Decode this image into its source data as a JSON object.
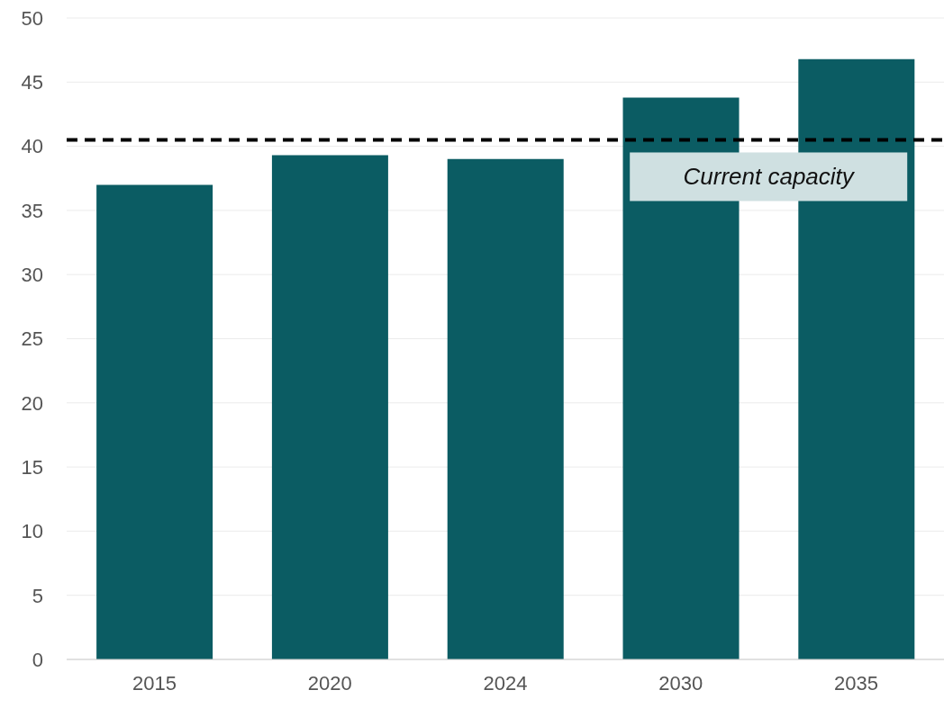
{
  "chart_data": {
    "type": "bar",
    "categories": [
      "2015",
      "2020",
      "2024",
      "2030",
      "2035"
    ],
    "values": [
      37.0,
      39.3,
      39.0,
      43.8,
      46.8
    ],
    "color": "#0b5c63",
    "ylim": [
      0,
      50
    ],
    "yticks": [
      0,
      5,
      10,
      15,
      20,
      25,
      30,
      35,
      40,
      45,
      50
    ],
    "grid": "y",
    "ref_lines": [
      {
        "axis": "y",
        "value": 40.5,
        "label": "Current capacity",
        "color": "#000000",
        "line_style": "dashed"
      }
    ]
  }
}
